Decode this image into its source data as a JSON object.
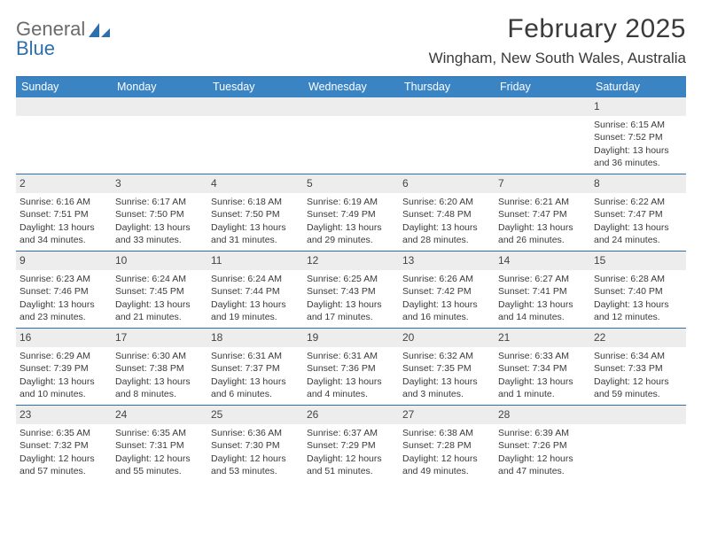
{
  "logo": {
    "word1": "General",
    "word2": "Blue"
  },
  "title": "February 2025",
  "location": "Wingham, New South Wales, Australia",
  "colors": {
    "header_bg": "#3b84c4",
    "header_text": "#ffffff",
    "rule": "#2f6fab",
    "daynum_bg": "#ededed",
    "text": "#3a3a3a",
    "logo_gray": "#6b6b6b",
    "logo_blue": "#2f6fab"
  },
  "days_of_week": [
    "Sunday",
    "Monday",
    "Tuesday",
    "Wednesday",
    "Thursday",
    "Friday",
    "Saturday"
  ],
  "weeks": [
    [
      null,
      null,
      null,
      null,
      null,
      null,
      {
        "n": "1",
        "sunrise": "Sunrise: 6:15 AM",
        "sunset": "Sunset: 7:52 PM",
        "dl1": "Daylight: 13 hours",
        "dl2": "and 36 minutes."
      }
    ],
    [
      {
        "n": "2",
        "sunrise": "Sunrise: 6:16 AM",
        "sunset": "Sunset: 7:51 PM",
        "dl1": "Daylight: 13 hours",
        "dl2": "and 34 minutes."
      },
      {
        "n": "3",
        "sunrise": "Sunrise: 6:17 AM",
        "sunset": "Sunset: 7:50 PM",
        "dl1": "Daylight: 13 hours",
        "dl2": "and 33 minutes."
      },
      {
        "n": "4",
        "sunrise": "Sunrise: 6:18 AM",
        "sunset": "Sunset: 7:50 PM",
        "dl1": "Daylight: 13 hours",
        "dl2": "and 31 minutes."
      },
      {
        "n": "5",
        "sunrise": "Sunrise: 6:19 AM",
        "sunset": "Sunset: 7:49 PM",
        "dl1": "Daylight: 13 hours",
        "dl2": "and 29 minutes."
      },
      {
        "n": "6",
        "sunrise": "Sunrise: 6:20 AM",
        "sunset": "Sunset: 7:48 PM",
        "dl1": "Daylight: 13 hours",
        "dl2": "and 28 minutes."
      },
      {
        "n": "7",
        "sunrise": "Sunrise: 6:21 AM",
        "sunset": "Sunset: 7:47 PM",
        "dl1": "Daylight: 13 hours",
        "dl2": "and 26 minutes."
      },
      {
        "n": "8",
        "sunrise": "Sunrise: 6:22 AM",
        "sunset": "Sunset: 7:47 PM",
        "dl1": "Daylight: 13 hours",
        "dl2": "and 24 minutes."
      }
    ],
    [
      {
        "n": "9",
        "sunrise": "Sunrise: 6:23 AM",
        "sunset": "Sunset: 7:46 PM",
        "dl1": "Daylight: 13 hours",
        "dl2": "and 23 minutes."
      },
      {
        "n": "10",
        "sunrise": "Sunrise: 6:24 AM",
        "sunset": "Sunset: 7:45 PM",
        "dl1": "Daylight: 13 hours",
        "dl2": "and 21 minutes."
      },
      {
        "n": "11",
        "sunrise": "Sunrise: 6:24 AM",
        "sunset": "Sunset: 7:44 PM",
        "dl1": "Daylight: 13 hours",
        "dl2": "and 19 minutes."
      },
      {
        "n": "12",
        "sunrise": "Sunrise: 6:25 AM",
        "sunset": "Sunset: 7:43 PM",
        "dl1": "Daylight: 13 hours",
        "dl2": "and 17 minutes."
      },
      {
        "n": "13",
        "sunrise": "Sunrise: 6:26 AM",
        "sunset": "Sunset: 7:42 PM",
        "dl1": "Daylight: 13 hours",
        "dl2": "and 16 minutes."
      },
      {
        "n": "14",
        "sunrise": "Sunrise: 6:27 AM",
        "sunset": "Sunset: 7:41 PM",
        "dl1": "Daylight: 13 hours",
        "dl2": "and 14 minutes."
      },
      {
        "n": "15",
        "sunrise": "Sunrise: 6:28 AM",
        "sunset": "Sunset: 7:40 PM",
        "dl1": "Daylight: 13 hours",
        "dl2": "and 12 minutes."
      }
    ],
    [
      {
        "n": "16",
        "sunrise": "Sunrise: 6:29 AM",
        "sunset": "Sunset: 7:39 PM",
        "dl1": "Daylight: 13 hours",
        "dl2": "and 10 minutes."
      },
      {
        "n": "17",
        "sunrise": "Sunrise: 6:30 AM",
        "sunset": "Sunset: 7:38 PM",
        "dl1": "Daylight: 13 hours",
        "dl2": "and 8 minutes."
      },
      {
        "n": "18",
        "sunrise": "Sunrise: 6:31 AM",
        "sunset": "Sunset: 7:37 PM",
        "dl1": "Daylight: 13 hours",
        "dl2": "and 6 minutes."
      },
      {
        "n": "19",
        "sunrise": "Sunrise: 6:31 AM",
        "sunset": "Sunset: 7:36 PM",
        "dl1": "Daylight: 13 hours",
        "dl2": "and 4 minutes."
      },
      {
        "n": "20",
        "sunrise": "Sunrise: 6:32 AM",
        "sunset": "Sunset: 7:35 PM",
        "dl1": "Daylight: 13 hours",
        "dl2": "and 3 minutes."
      },
      {
        "n": "21",
        "sunrise": "Sunrise: 6:33 AM",
        "sunset": "Sunset: 7:34 PM",
        "dl1": "Daylight: 13 hours",
        "dl2": "and 1 minute."
      },
      {
        "n": "22",
        "sunrise": "Sunrise: 6:34 AM",
        "sunset": "Sunset: 7:33 PM",
        "dl1": "Daylight: 12 hours",
        "dl2": "and 59 minutes."
      }
    ],
    [
      {
        "n": "23",
        "sunrise": "Sunrise: 6:35 AM",
        "sunset": "Sunset: 7:32 PM",
        "dl1": "Daylight: 12 hours",
        "dl2": "and 57 minutes."
      },
      {
        "n": "24",
        "sunrise": "Sunrise: 6:35 AM",
        "sunset": "Sunset: 7:31 PM",
        "dl1": "Daylight: 12 hours",
        "dl2": "and 55 minutes."
      },
      {
        "n": "25",
        "sunrise": "Sunrise: 6:36 AM",
        "sunset": "Sunset: 7:30 PM",
        "dl1": "Daylight: 12 hours",
        "dl2": "and 53 minutes."
      },
      {
        "n": "26",
        "sunrise": "Sunrise: 6:37 AM",
        "sunset": "Sunset: 7:29 PM",
        "dl1": "Daylight: 12 hours",
        "dl2": "and 51 minutes."
      },
      {
        "n": "27",
        "sunrise": "Sunrise: 6:38 AM",
        "sunset": "Sunset: 7:28 PM",
        "dl1": "Daylight: 12 hours",
        "dl2": "and 49 minutes."
      },
      {
        "n": "28",
        "sunrise": "Sunrise: 6:39 AM",
        "sunset": "Sunset: 7:26 PM",
        "dl1": "Daylight: 12 hours",
        "dl2": "and 47 minutes."
      },
      null
    ]
  ]
}
